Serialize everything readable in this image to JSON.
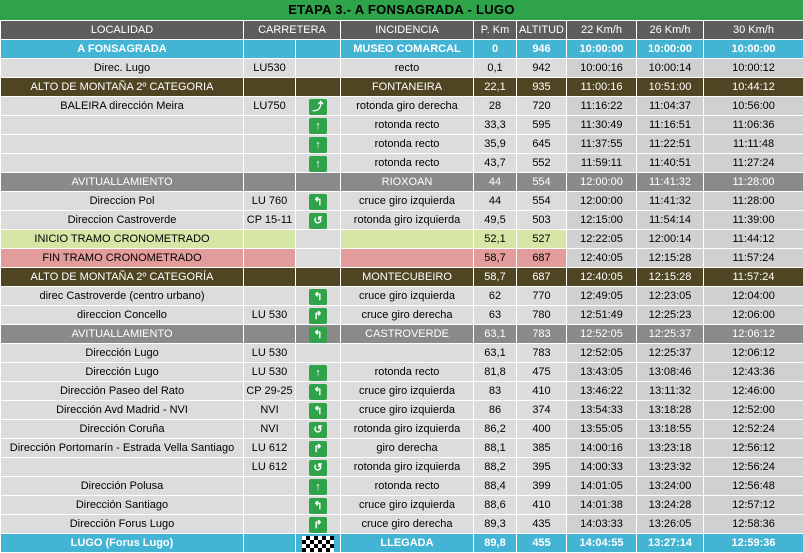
{
  "title": "ETAPA 3.- A FONSAGRADA - LUGO",
  "headers": {
    "localidad": "LOCALIDAD",
    "carretera": "CARRETERA",
    "incidencia": "INCIDENCIA",
    "pkm": "P. Km",
    "altitud": "ALTITUD",
    "s22": "22  Km/h",
    "s26": "26  Km/h",
    "s30": "30  Km/h"
  },
  "colors": {
    "title": "#2fa34a",
    "header": "#5d5d5d",
    "cyan": "#44b4d4",
    "olive": "#4f4522",
    "gray": "#8a8a8a",
    "green": "#d6e6a6",
    "pink": "#e39c9c",
    "sign": "#2fa34a"
  },
  "rows": [
    {
      "style": "cyan",
      "localidad": "A FONSAGRADA",
      "carretera": "",
      "icon": "",
      "incidencia": "MUSEO COMARCAL",
      "pkm": "0",
      "altitud": "946",
      "t22": "10:00:00",
      "t26": "10:00:00",
      "t30": "10:00:00"
    },
    {
      "style": "white",
      "localidad": "Direc. Lugo",
      "carretera": "LU530",
      "icon": "",
      "incidencia": "recto",
      "pkm": "0,1",
      "altitud": "942",
      "t22": "10:00:16",
      "t26": "10:00:14",
      "t30": "10:00:12"
    },
    {
      "style": "olive",
      "localidad": "ALTO DE MONTAÑA 2º CATEGORIA",
      "carretera": "",
      "icon": "",
      "incidencia": "FONTANEIRA",
      "pkm": "22,1",
      "altitud": "935",
      "t22": "11:00:16",
      "t26": "10:51:00",
      "t30": "10:44:12"
    },
    {
      "style": "white",
      "localidad": "BALEIRA dirección Meira",
      "carretera": "LU750",
      "icon": "⤴",
      "incidencia": "rotonda giro derecha",
      "pkm": "28",
      "altitud": "720",
      "t22": "11:16:22",
      "t26": "11:04:37",
      "t30": "10:56:00"
    },
    {
      "style": "white",
      "localidad": "",
      "carretera": "",
      "icon": "↑",
      "incidencia": "rotonda recto",
      "pkm": "33,3",
      "altitud": "595",
      "t22": "11:30:49",
      "t26": "11:16:51",
      "t30": "11:06:36"
    },
    {
      "style": "white",
      "localidad": "",
      "carretera": "",
      "icon": "↑",
      "incidencia": "rotonda recto",
      "pkm": "35,9",
      "altitud": "645",
      "t22": "11:37:55",
      "t26": "11:22:51",
      "t30": "11:11:48"
    },
    {
      "style": "white",
      "localidad": "",
      "carretera": "",
      "icon": "↑",
      "incidencia": "rotonda recto",
      "pkm": "43,7",
      "altitud": "552",
      "t22": "11:59:11",
      "t26": "11:40:51",
      "t30": "11:27:24"
    },
    {
      "style": "gray",
      "localidad": "AVITUALLAMIENTO",
      "carretera": "",
      "icon": "",
      "incidencia": "RIOXOAN",
      "pkm": "44",
      "altitud": "554",
      "t22": "12:00:00",
      "t26": "11:41:32",
      "t30": "11:28:00"
    },
    {
      "style": "white",
      "localidad": "Direccion Pol",
      "carretera": "LU 760",
      "icon": "↰",
      "incidencia": "cruce giro izquierda",
      "pkm": "44",
      "altitud": "554",
      "t22": "12:00:00",
      "t26": "11:41:32",
      "t30": "11:28:00"
    },
    {
      "style": "white",
      "localidad": "Direccion Castroverde",
      "carretera": "CP 15-11",
      "icon": "↺",
      "incidencia": "rotonda giro izquierda",
      "pkm": "49,5",
      "altitud": "503",
      "t22": "12:15:00",
      "t26": "11:54:14",
      "t30": "11:39:00"
    },
    {
      "style": "green",
      "localidad": "INICIO TRAMO CRONOMETRADO",
      "carretera": "",
      "icon": "",
      "incidencia": "",
      "pkm": "52,1",
      "altitud": "527",
      "t22": "12:22:05",
      "t26": "12:00:14",
      "t30": "11:44:12"
    },
    {
      "style": "pink",
      "localidad": "FIN TRAMO CRONOMETRADO",
      "carretera": "",
      "icon": "",
      "incidencia": "",
      "pkm": "58,7",
      "altitud": "687",
      "t22": "12:40:05",
      "t26": "12:15:28",
      "t30": "11:57:24"
    },
    {
      "style": "olive",
      "localidad": "ALTO DE MONTAÑA 2º CATEGORÍA",
      "carretera": "",
      "icon": "",
      "incidencia": "MONTECUBEIRO",
      "pkm": "58,7",
      "altitud": "687",
      "t22": "12:40:05",
      "t26": "12:15:28",
      "t30": "11:57:24"
    },
    {
      "style": "white",
      "localidad": "direc Castroverde (centro urbano)",
      "carretera": "",
      "icon": "↰",
      "incidencia": "cruce giro izquierda",
      "pkm": "62",
      "altitud": "770",
      "t22": "12:49:05",
      "t26": "12:23:05",
      "t30": "12:04:00"
    },
    {
      "style": "white",
      "localidad": "direccion Concello",
      "carretera": "LU 530",
      "icon": "↱",
      "incidencia": "cruce giro derecha",
      "pkm": "63",
      "altitud": "780",
      "t22": "12:51:49",
      "t26": "12:25:23",
      "t30": "12:06:00"
    },
    {
      "style": "gray",
      "localidad": "AVITUALLAMIENTO",
      "carretera": "",
      "icon": "↰",
      "incidencia": "CASTROVERDE",
      "pkm": "63,1",
      "altitud": "783",
      "t22": "12:52:05",
      "t26": "12:25:37",
      "t30": "12:06:12"
    },
    {
      "style": "white",
      "localidad": "Dirección Lugo",
      "carretera": "LU 530",
      "icon": "",
      "incidencia": "",
      "pkm": "63,1",
      "altitud": "783",
      "t22": "12:52:05",
      "t26": "12:25:37",
      "t30": "12:06:12"
    },
    {
      "style": "white",
      "localidad": "Dirección Lugo",
      "carretera": "LU 530",
      "icon": "↑",
      "incidencia": "rotonda recto",
      "pkm": "81,8",
      "altitud": "475",
      "t22": "13:43:05",
      "t26": "13:08:46",
      "t30": "12:43:36"
    },
    {
      "style": "white",
      "localidad": "Dirección Paseo del  Rato",
      "carretera": "CP 29-25",
      "icon": "↰",
      "incidencia": "cruce giro izquierda",
      "pkm": "83",
      "altitud": "410",
      "t22": "13:46:22",
      "t26": "13:11:32",
      "t30": "12:46:00"
    },
    {
      "style": "white",
      "localidad": "Dirección Avd Madrid - NVI",
      "carretera": "NVI",
      "icon": "↰",
      "incidencia": "cruce giro izquierda",
      "pkm": "86",
      "altitud": "374",
      "t22": "13:54:33",
      "t26": "13:18:28",
      "t30": "12:52:00"
    },
    {
      "style": "white",
      "localidad": "Dirección Coruña",
      "carretera": "NVI",
      "icon": "↺",
      "incidencia": "rotonda giro izquierda",
      "pkm": "86,2",
      "altitud": "400",
      "t22": "13:55:05",
      "t26": "13:18:55",
      "t30": "12:52:24"
    },
    {
      "style": "white",
      "localidad": "Dirección Portomarín - Estrada Vella Santiago",
      "carretera": "LU 612",
      "icon": "↱",
      "incidencia": "giro derecha",
      "pkm": "88,1",
      "altitud": "385",
      "t22": "14:00:16",
      "t26": "13:23:18",
      "t30": "12:56:12"
    },
    {
      "style": "white",
      "localidad": "",
      "carretera": "LU 612",
      "icon": "↺",
      "incidencia": "rotonda giro izquierda",
      "pkm": "88,2",
      "altitud": "395",
      "t22": "14:00:33",
      "t26": "13:23:32",
      "t30": "12:56:24"
    },
    {
      "style": "white",
      "localidad": "Dirección Polusa",
      "carretera": "",
      "icon": "↑",
      "incidencia": "rotonda recto",
      "pkm": "88,4",
      "altitud": "399",
      "t22": "14:01:05",
      "t26": "13:24:00",
      "t30": "12:56:48"
    },
    {
      "style": "white",
      "localidad": "Dirección Santiago",
      "carretera": "",
      "icon": "↰",
      "incidencia": "cruce giro izquierda",
      "pkm": "88,6",
      "altitud": "410",
      "t22": "14:01:38",
      "t26": "13:24:28",
      "t30": "12:57:12"
    },
    {
      "style": "white",
      "localidad": "Dirección Forus Lugo",
      "carretera": "",
      "icon": "↱",
      "incidencia": "cruce giro derecha",
      "pkm": "89,3",
      "altitud": "435",
      "t22": "14:03:33",
      "t26": "13:26:05",
      "t30": "12:58:36"
    },
    {
      "style": "cyan",
      "localidad": "LUGO (Forus Lugo)",
      "carretera": "",
      "icon": "finish-flag",
      "incidencia": "LLEGADA",
      "pkm": "89,8",
      "altitud": "455",
      "t22": "14:04:55",
      "t26": "13:27:14",
      "t30": "12:59:36"
    }
  ]
}
